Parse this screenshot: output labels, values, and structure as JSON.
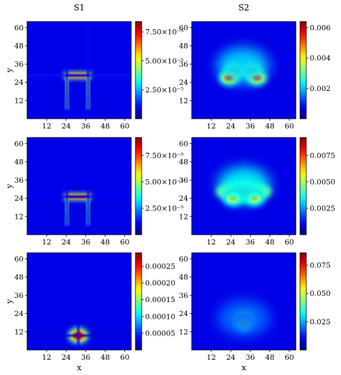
{
  "chart_data": [
    {
      "type": "heatmap",
      "column_title": "S1",
      "xlabel": "",
      "ylabel": "y",
      "x_ticks": [
        12,
        24,
        36,
        48,
        60
      ],
      "y_ticks": [
        12,
        24,
        36,
        48,
        60
      ],
      "xlim": [
        0,
        64
      ],
      "ylim": [
        0,
        64
      ],
      "colormap": "jet",
      "colorbar": {
        "min": 0,
        "max": 8.4e-05,
        "ticks": [
          2.5e-05,
          5e-05,
          7.5e-05
        ],
        "tick_labels": [
          "2.50×10⁻⁵",
          "5.00×10⁻⁵",
          "7.50×10⁻⁵"
        ]
      },
      "features": [
        {
          "kind": "hbar",
          "y": 28.5,
          "x0": 24,
          "x1": 38,
          "value": 7.8e-05
        },
        {
          "kind": "vbar",
          "x": 24.5,
          "y0": 6,
          "y1": 28,
          "value": 4e-05
        },
        {
          "kind": "vbar",
          "x": 37.5,
          "y0": 6,
          "y1": 28,
          "value": 4e-05
        },
        {
          "kind": "hline",
          "y": 28.5,
          "value": 1.2e-05
        },
        {
          "kind": "vline",
          "x": 24.5,
          "value": 1e-05
        },
        {
          "kind": "vline",
          "x": 37.5,
          "value": 1e-05
        }
      ]
    },
    {
      "type": "heatmap",
      "column_title": "S2",
      "xlabel": "",
      "ylabel": "",
      "x_ticks": [
        12,
        24,
        36,
        48,
        60
      ],
      "y_ticks": [
        12,
        24,
        36,
        48,
        60
      ],
      "xlim": [
        0,
        64
      ],
      "ylim": [
        0,
        64
      ],
      "colormap": "jet",
      "colorbar": {
        "min": 0,
        "max": 0.0064,
        "ticks": [
          0.002,
          0.004,
          0.006
        ],
        "tick_labels": [
          "0.002",
          "0.004",
          "0.006"
        ]
      },
      "features": [
        {
          "kind": "spot",
          "x": 26,
          "y": 31.5,
          "value": 0.0062
        },
        {
          "kind": "spot",
          "x": 37,
          "y": 31.5,
          "value": 0.0062
        },
        {
          "kind": "spot",
          "x": 23,
          "y": 27,
          "value": 0.0055
        },
        {
          "kind": "spot",
          "x": 40,
          "y": 27,
          "value": 0.0055
        },
        {
          "kind": "halo",
          "x": 31.5,
          "y": 35,
          "value": 0.0022
        }
      ]
    },
    {
      "type": "heatmap",
      "column_title": "",
      "xlabel": "",
      "ylabel": "y",
      "x_ticks": [
        12,
        24,
        36,
        48,
        60
      ],
      "y_ticks": [
        12,
        24,
        36,
        48,
        60
      ],
      "xlim": [
        0,
        64
      ],
      "ylim": [
        0,
        64
      ],
      "colormap": "jet",
      "colorbar": {
        "min": 0,
        "max": 9.2e-05,
        "ticks": [
          2.5e-05,
          5e-05,
          7.5e-05
        ],
        "tick_labels": [
          "2.50×10⁻⁵",
          "5.00×10⁻⁵",
          "7.50×10⁻⁵"
        ]
      },
      "features": [
        {
          "kind": "hbar",
          "y": 25,
          "x0": 24,
          "x1": 38,
          "value": 8.8e-05
        },
        {
          "kind": "vbar",
          "x": 24.5,
          "y0": 6,
          "y1": 25,
          "value": 4e-05
        },
        {
          "kind": "vbar",
          "x": 37.5,
          "y0": 6,
          "y1": 25,
          "value": 4e-05
        },
        {
          "kind": "hline",
          "y": 25,
          "value": 1.2e-05
        },
        {
          "kind": "vline",
          "x": 24.5,
          "value": 1e-05
        },
        {
          "kind": "vline",
          "x": 37.5,
          "value": 1e-05
        }
      ]
    },
    {
      "type": "heatmap",
      "column_title": "",
      "xlabel": "",
      "ylabel": "",
      "x_ticks": [
        12,
        24,
        36,
        48,
        60
      ],
      "y_ticks": [
        12,
        24,
        36,
        48,
        60
      ],
      "xlim": [
        0,
        64
      ],
      "ylim": [
        0,
        64
      ],
      "colormap": "jet",
      "colorbar": {
        "min": 0,
        "max": 0.0092,
        "ticks": [
          0.0025,
          0.005,
          0.0075
        ],
        "tick_labels": [
          "0.0025",
          "0.0050",
          "0.0075"
        ]
      },
      "features": [
        {
          "kind": "blob",
          "x": 32,
          "y": 28.5,
          "value": 0.009
        },
        {
          "kind": "spot",
          "x": 25.5,
          "y": 24,
          "value": 0.0065
        },
        {
          "kind": "spot",
          "x": 38.5,
          "y": 24,
          "value": 0.0065
        },
        {
          "kind": "halo",
          "x": 32,
          "y": 33,
          "value": 0.0035
        }
      ]
    },
    {
      "type": "heatmap",
      "column_title": "",
      "xlabel": "x",
      "ylabel": "y",
      "x_ticks": [
        12,
        24,
        36,
        48,
        60
      ],
      "y_ticks": [
        12,
        24,
        36,
        48,
        60
      ],
      "xlim": [
        0,
        64
      ],
      "ylim": [
        0,
        64
      ],
      "colormap": "jet",
      "colorbar": {
        "min": 0,
        "max": 0.00029,
        "ticks": [
          5e-05,
          0.0001,
          0.00015,
          0.0002,
          0.00025
        ],
        "tick_labels": [
          "0.00005",
          "0.00010",
          "0.00015",
          "0.00020",
          "0.00025"
        ]
      },
      "features": [
        {
          "kind": "spot",
          "x": 31.5,
          "y": 9.5,
          "value": 0.00028
        },
        {
          "kind": "vline",
          "x": 31.5,
          "value": 3e-05
        },
        {
          "kind": "hline",
          "y": 9.5,
          "value": 2e-05
        }
      ]
    },
    {
      "type": "heatmap",
      "column_title": "",
      "xlabel": "x",
      "ylabel": "",
      "x_ticks": [
        12,
        24,
        36,
        48,
        60
      ],
      "y_ticks": [
        12,
        24,
        36,
        48,
        60
      ],
      "xlim": [
        0,
        64
      ],
      "ylim": [
        0,
        64
      ],
      "colormap": "jet",
      "colorbar": {
        "min": 0,
        "max": 0.086,
        "ticks": [
          0.025,
          0.05,
          0.075
        ],
        "tick_labels": [
          "0.025",
          "0.050",
          "0.075"
        ]
      },
      "features": [
        {
          "kind": "spot",
          "x": 32,
          "y": 20.5,
          "value": 0.084
        },
        {
          "kind": "spot",
          "x": 32,
          "y": 17.5,
          "value": 0.055
        },
        {
          "kind": "halo",
          "x": 32,
          "y": 21,
          "value": 0.02
        }
      ]
    }
  ]
}
